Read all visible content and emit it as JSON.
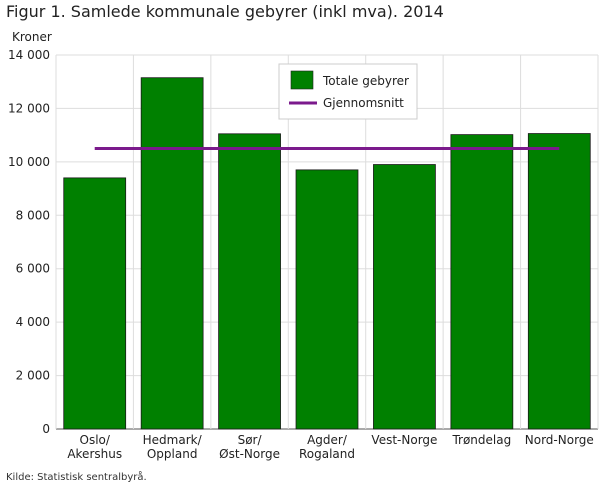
{
  "title": "Figur 1. Samlede kommunale gebyrer (inkl mva). 2014",
  "source": "Kilde: Statistisk sentralbyrå.",
  "chart_data": {
    "type": "bar",
    "title": "Figur 1. Samlede kommunale gebyrer (inkl mva). 2014",
    "ylabel": "Kroner",
    "xlabel": "",
    "ylim": [
      0,
      14000
    ],
    "yticks": [
      0,
      2000,
      4000,
      6000,
      8000,
      10000,
      12000,
      14000
    ],
    "ytick_labels": [
      "0",
      "2 000",
      "4 000",
      "6 000",
      "8 000",
      "10 000",
      "12 000",
      "14 000"
    ],
    "categories": [
      [
        "Oslo/",
        "Akershus"
      ],
      [
        "Hedmark/",
        "Oppland"
      ],
      [
        "Sør/",
        "Øst-Norge"
      ],
      [
        "Agder/",
        "Rogaland"
      ],
      [
        "Vest-Norge"
      ],
      [
        "Trøndelag"
      ],
      [
        "Nord-Norge"
      ]
    ],
    "series": [
      {
        "name": "Totale gebyrer",
        "kind": "bar",
        "color": "#008000",
        "values": [
          9400,
          13150,
          11050,
          9700,
          9900,
          11020,
          11060
        ]
      },
      {
        "name": "Gjennomsnitt",
        "kind": "line",
        "color": "#7b1a8c",
        "value": 10500
      }
    ],
    "grid": true,
    "legend_position": "top-center"
  }
}
